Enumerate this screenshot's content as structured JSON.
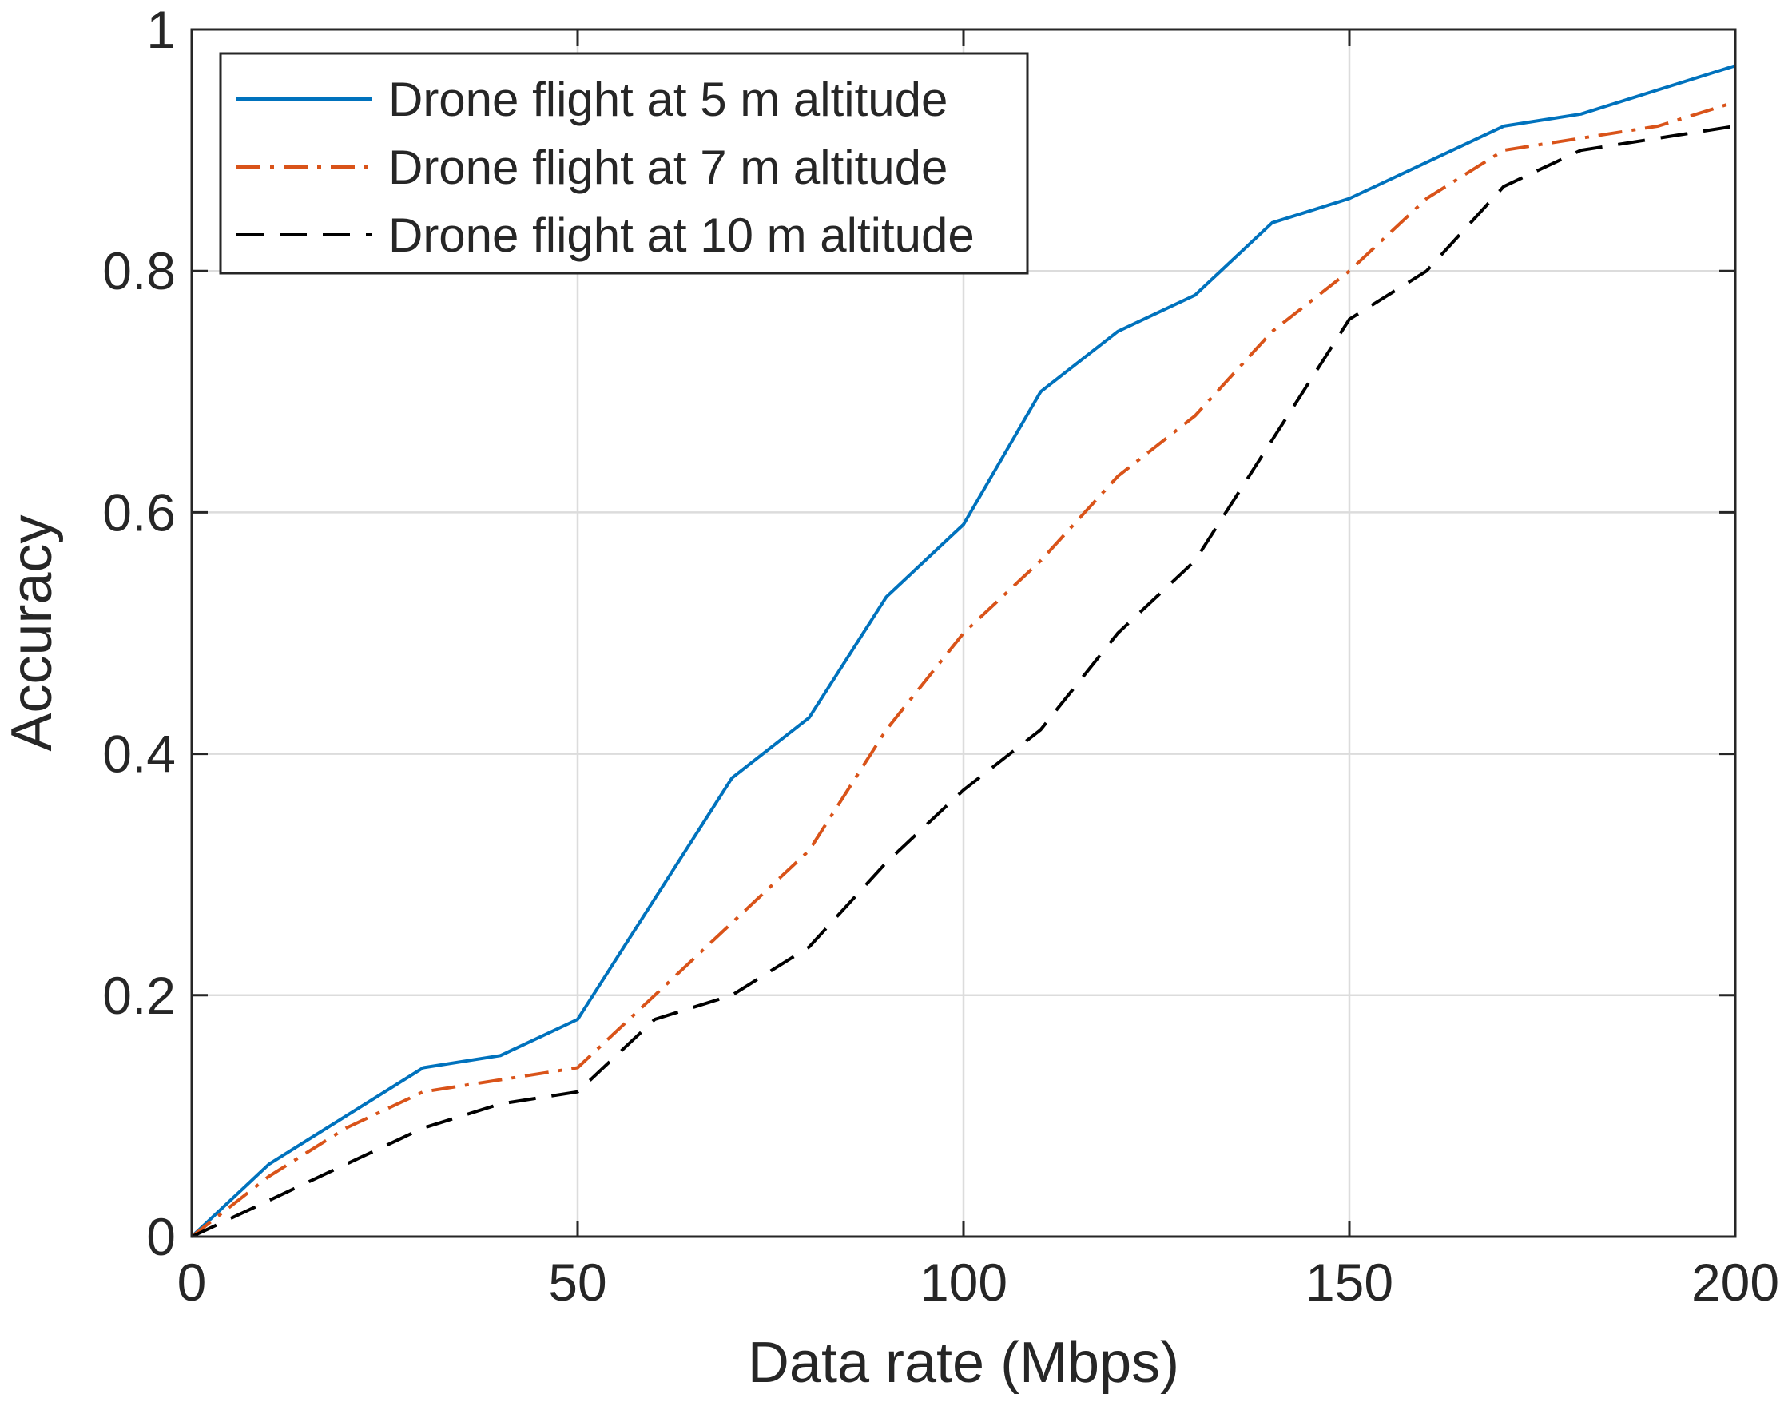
{
  "chart_data": {
    "type": "line",
    "title": "",
    "xlabel": "Data rate (Mbps)",
    "ylabel": "Accuracy",
    "xlim": [
      0,
      200
    ],
    "ylim": [
      0,
      1
    ],
    "xticks": [
      0,
      50,
      100,
      150,
      200
    ],
    "yticks": [
      0,
      0.2,
      0.4,
      0.6,
      0.8,
      1
    ],
    "xtick_labels": [
      "0",
      "50",
      "100",
      "150",
      "200"
    ],
    "ytick_labels": [
      "0",
      "0.2",
      "0.4",
      "0.6",
      "0.8",
      "1"
    ],
    "grid": true,
    "legend_position": "top-left",
    "x": [
      0,
      10,
      20,
      30,
      40,
      50,
      60,
      70,
      80,
      90,
      100,
      110,
      120,
      130,
      140,
      150,
      160,
      170,
      180,
      190,
      200
    ],
    "series": [
      {
        "name": "Drone flight at 5 m altitude",
        "color": "#0072BD",
        "line_style": "solid",
        "values": [
          0,
          0.06,
          0.1,
          0.14,
          0.15,
          0.18,
          0.28,
          0.38,
          0.43,
          0.53,
          0.59,
          0.7,
          0.75,
          0.78,
          0.84,
          0.86,
          0.89,
          0.92,
          0.93,
          0.95,
          0.97
        ]
      },
      {
        "name": "Drone flight at 7 m altitude",
        "color": "#D95319",
        "line_style": "dash-dot",
        "values": [
          0,
          0.05,
          0.09,
          0.12,
          0.13,
          0.14,
          0.2,
          0.26,
          0.32,
          0.42,
          0.5,
          0.56,
          0.63,
          0.68,
          0.75,
          0.8,
          0.86,
          0.9,
          0.91,
          0.92,
          0.94
        ]
      },
      {
        "name": "Drone flight at 10 m altitude",
        "color": "#000000",
        "line_style": "dashed",
        "values": [
          0,
          0.03,
          0.06,
          0.09,
          0.11,
          0.12,
          0.18,
          0.2,
          0.24,
          0.31,
          0.37,
          0.42,
          0.5,
          0.56,
          0.66,
          0.76,
          0.8,
          0.87,
          0.9,
          0.91,
          0.92
        ]
      }
    ]
  }
}
